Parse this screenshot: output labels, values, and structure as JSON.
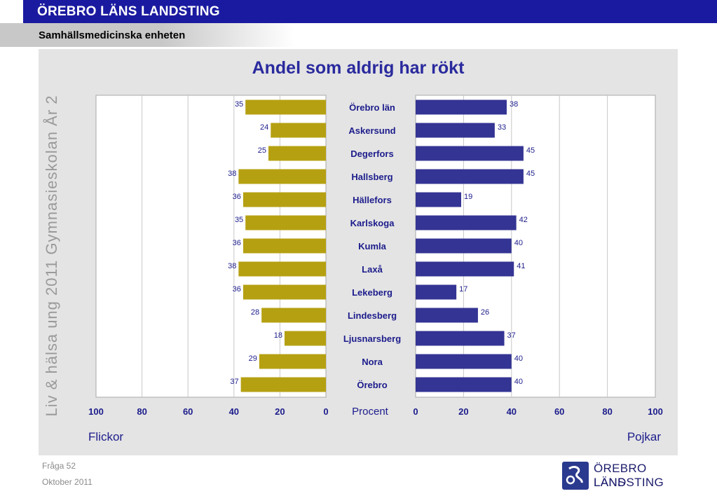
{
  "header": {
    "org_title": "ÖREBRO LÄNS LANDSTING",
    "department": "Samhällsmedicinska enheten"
  },
  "side_label": "Liv & hälsa ung 2011 Gymnasieskolan År 2",
  "footer": {
    "question": "Fråga 52",
    "date": "Oktober 2011"
  },
  "logo": {
    "line1": "ÖREBRO LÄNS",
    "line2": "LANDSTING",
    "icon": "landsting-logo-icon"
  },
  "colors": {
    "girls": "#b5a012",
    "boys": "#343494",
    "title": "#2a2a9e",
    "labels": "#1c1c8c",
    "panel": "#e4e4e4"
  },
  "chart_data": {
    "type": "bar",
    "orientation": "horizontal-butterfly",
    "title": "Andel som aldrig har rökt",
    "center_axis_label": "Procent",
    "categories": [
      "Örebro län",
      "Askersund",
      "Degerfors",
      "Hallsberg",
      "Hällefors",
      "Karlskoga",
      "Kumla",
      "Laxå",
      "Lekeberg",
      "Lindesberg",
      "Ljusnarsberg",
      "Nora",
      "Örebro"
    ],
    "series": [
      {
        "name": "Flickor",
        "values": [
          35,
          24,
          25,
          38,
          36,
          35,
          36,
          38,
          36,
          28,
          18,
          29,
          37
        ]
      },
      {
        "name": "Pojkar",
        "values": [
          38,
          33,
          45,
          45,
          19,
          42,
          40,
          41,
          17,
          26,
          37,
          40,
          40
        ]
      }
    ],
    "xlim": [
      0,
      100
    ],
    "ticks_left": [
      "100",
      "80",
      "60",
      "40",
      "20",
      "0"
    ],
    "ticks_right": [
      "0",
      "20",
      "40",
      "60",
      "80",
      "100"
    ],
    "grid": true
  }
}
